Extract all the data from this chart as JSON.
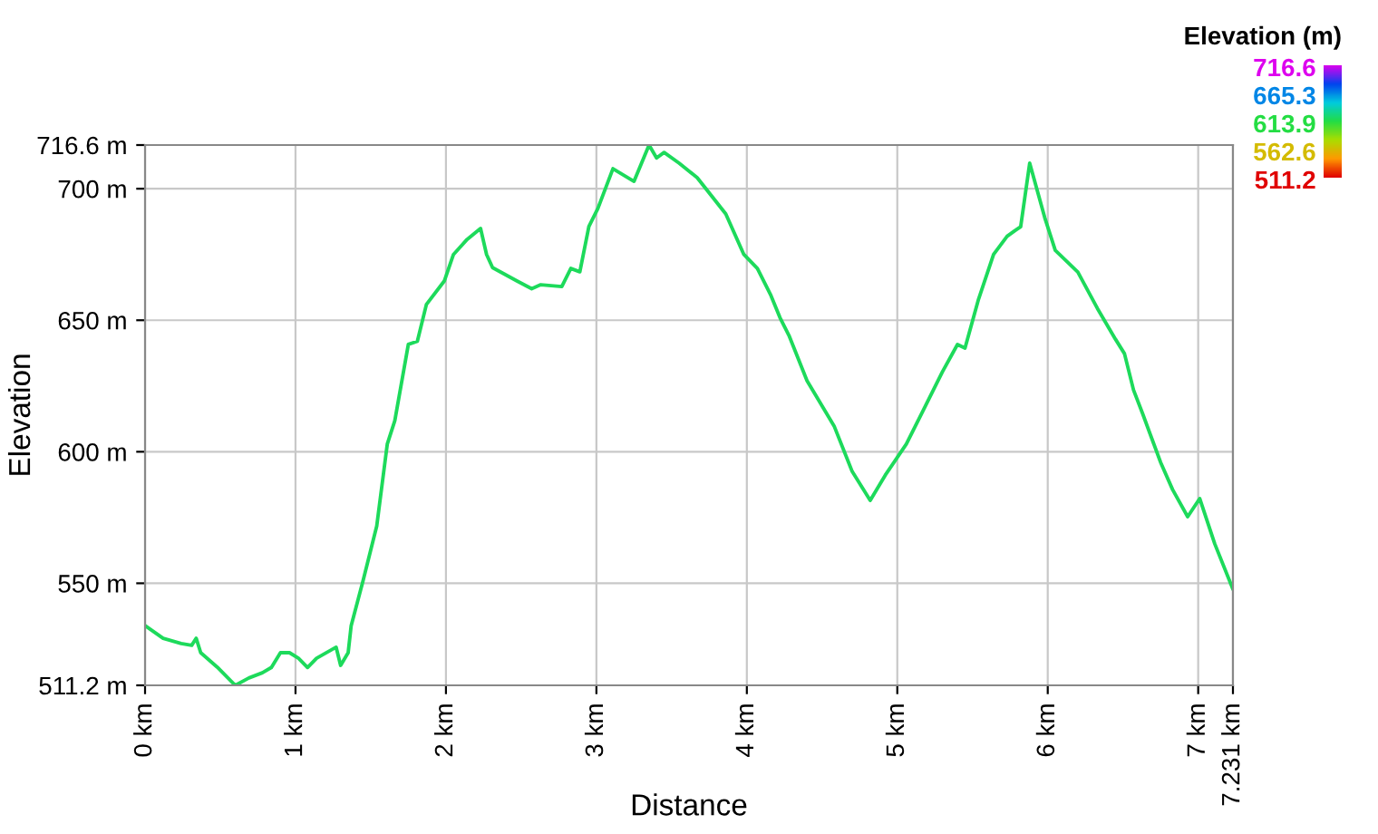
{
  "chart_data": {
    "type": "line",
    "xlabel": "Distance",
    "ylabel": "Elevation",
    "clabel": "Elevation (m)",
    "clim": [
      511.2,
      716.6
    ],
    "cticks": [
      716.6,
      665.3,
      613.9,
      562.6,
      511.2
    ],
    "xlim": [
      0,
      7.231
    ],
    "ylim": [
      511.2,
      716.6
    ],
    "xticks": [
      {
        "value": 0,
        "label": "0 km"
      },
      {
        "value": 1,
        "label": "1 km"
      },
      {
        "value": 2,
        "label": "2 km"
      },
      {
        "value": 3,
        "label": "3 km"
      },
      {
        "value": 4,
        "label": "4 km"
      },
      {
        "value": 5,
        "label": "5 km"
      },
      {
        "value": 6,
        "label": "6 km"
      },
      {
        "value": 7,
        "label": "7 km"
      },
      {
        "value": 7.231,
        "label": "7.231 km"
      }
    ],
    "yticks": [
      {
        "value": 511.2,
        "label": "511.2 m"
      },
      {
        "value": 550,
        "label": "550 m"
      },
      {
        "value": 600,
        "label": "600 m"
      },
      {
        "value": 650,
        "label": "650 m"
      },
      {
        "value": 700,
        "label": "700 m"
      },
      {
        "value": 716.6,
        "label": "716.6 m"
      }
    ],
    "grid": true,
    "x": [
      0,
      0.12,
      0.24,
      0.31,
      0.34,
      0.37,
      0.48,
      0.6,
      0.69,
      0.78,
      0.84,
      0.9,
      0.96,
      1.02,
      1.08,
      1.14,
      1.27,
      1.3,
      1.35,
      1.37,
      1.45,
      1.54,
      1.61,
      1.66,
      1.75,
      1.81,
      1.87,
      1.99,
      2.05,
      2.14,
      2.23,
      2.27,
      2.31,
      2.47,
      2.57,
      2.63,
      2.77,
      2.83,
      2.89,
      2.95,
      3.01,
      3.11,
      3.25,
      3.35,
      3.4,
      3.45,
      3.55,
      3.67,
      3.86,
      3.98,
      4.07,
      4.16,
      4.22,
      4.28,
      4.4,
      4.58,
      4.7,
      4.82,
      4.92,
      5.06,
      5.18,
      5.3,
      5.4,
      5.45,
      5.54,
      5.64,
      5.73,
      5.78,
      5.82,
      5.88,
      5.98,
      6.05,
      6.2,
      6.33,
      6.45,
      6.51,
      6.57,
      6.63,
      6.75,
      6.83,
      6.93,
      7.01,
      7.11,
      7.231
    ],
    "values": [
      533.9,
      529.1,
      527.1,
      526.4,
      529.1,
      523.6,
      518.1,
      511.2,
      514,
      516,
      518,
      523.6,
      523.6,
      521.5,
      518,
      521.5,
      525.7,
      518.8,
      523.6,
      533.9,
      551.2,
      571.8,
      602.9,
      611.8,
      640.8,
      642,
      656,
      665,
      675,
      680.7,
      684.9,
      675,
      670,
      665,
      662,
      663.5,
      662.8,
      669.7,
      668.4,
      685.6,
      692.5,
      707.6,
      702.8,
      716.6,
      711.7,
      713.8,
      709.7,
      704.2,
      690.4,
      675,
      669.7,
      659.4,
      651,
      644.2,
      627,
      609.8,
      592.5,
      581.5,
      591.1,
      602.9,
      616.6,
      630.4,
      640.8,
      639.4,
      658,
      675,
      681.9,
      684,
      685.5,
      709.7,
      689,
      676.6,
      668.3,
      654.5,
      642.8,
      637.3,
      623.5,
      614.6,
      596,
      585.6,
      575.3,
      582.2,
      565,
      547.7
    ]
  }
}
